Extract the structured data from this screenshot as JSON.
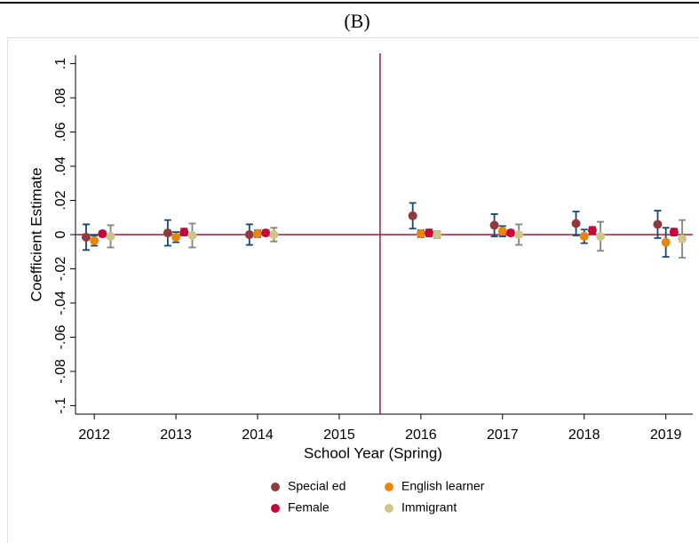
{
  "chart_data": {
    "type": "errorbar",
    "panel_label": "(B)",
    "x_label": "School Year (Spring)",
    "y_label": "Coefficient Estimate",
    "x": [
      2012,
      2013,
      2014,
      2015,
      2016,
      2017,
      2018,
      2019
    ],
    "xlim": [
      2011.77,
      2019.33
    ],
    "xticks": [
      2012,
      2013,
      2014,
      2015,
      2016,
      2017,
      2018,
      2019
    ],
    "ylim": [
      -0.105,
      0.105
    ],
    "yticks": [
      {
        "value": 0.1,
        "label": ".1"
      },
      {
        "value": 0.08,
        "label": ".08"
      },
      {
        "value": 0.06,
        "label": ".06"
      },
      {
        "value": 0.04,
        "label": ".04"
      },
      {
        "value": 0.02,
        "label": ".02"
      },
      0,
      {
        "value": -0.02,
        "label": "-.02"
      },
      {
        "value": -0.04,
        "label": "-.04"
      },
      {
        "value": -0.06,
        "label": "-.06"
      },
      {
        "value": -0.08,
        "label": "-.08"
      },
      {
        "value": -0.1,
        "label": "-.1"
      }
    ],
    "vline": 2015.5,
    "hline": 0,
    "reference_color": "#a8163c",
    "series": [
      {
        "name": "Special ed",
        "color": "#8e3a3f",
        "error_color": "#1a476f",
        "values": [
          -0.0015,
          0.001,
          0.0,
          null,
          0.011,
          0.0055,
          0.0065,
          0.006
        ],
        "errors": [
          0.0075,
          0.0075,
          0.006,
          null,
          0.0075,
          0.0065,
          0.007,
          0.008
        ]
      },
      {
        "name": "English learner",
        "color": "#e8860c",
        "error_color": "#1a476f",
        "values": [
          -0.0035,
          -0.0015,
          0.0005,
          null,
          0.0005,
          0.002,
          -0.001,
          -0.0045
        ],
        "errors": [
          0.003,
          0.003,
          0.002,
          null,
          0.002,
          0.003,
          0.004,
          0.0085
        ]
      },
      {
        "name": "Female",
        "color": "#c8063a",
        "error_color": "#1a476f",
        "values": [
          0.0005,
          0.0015,
          0.001,
          null,
          0.001,
          0.001,
          0.0025,
          0.0015
        ],
        "errors": [
          0.0015,
          0.002,
          0.0015,
          null,
          0.002,
          0.0015,
          0.002,
          0.002
        ]
      },
      {
        "name": "Immigrant",
        "color": "#cfc58a",
        "error_color": "#7d8a78",
        "values": [
          -0.001,
          -0.0005,
          0.0,
          null,
          0.0,
          0.0,
          -0.001,
          -0.0025
        ],
        "errors": [
          0.0065,
          0.007,
          0.004,
          null,
          0.002,
          0.006,
          0.0085,
          0.011
        ]
      }
    ]
  }
}
